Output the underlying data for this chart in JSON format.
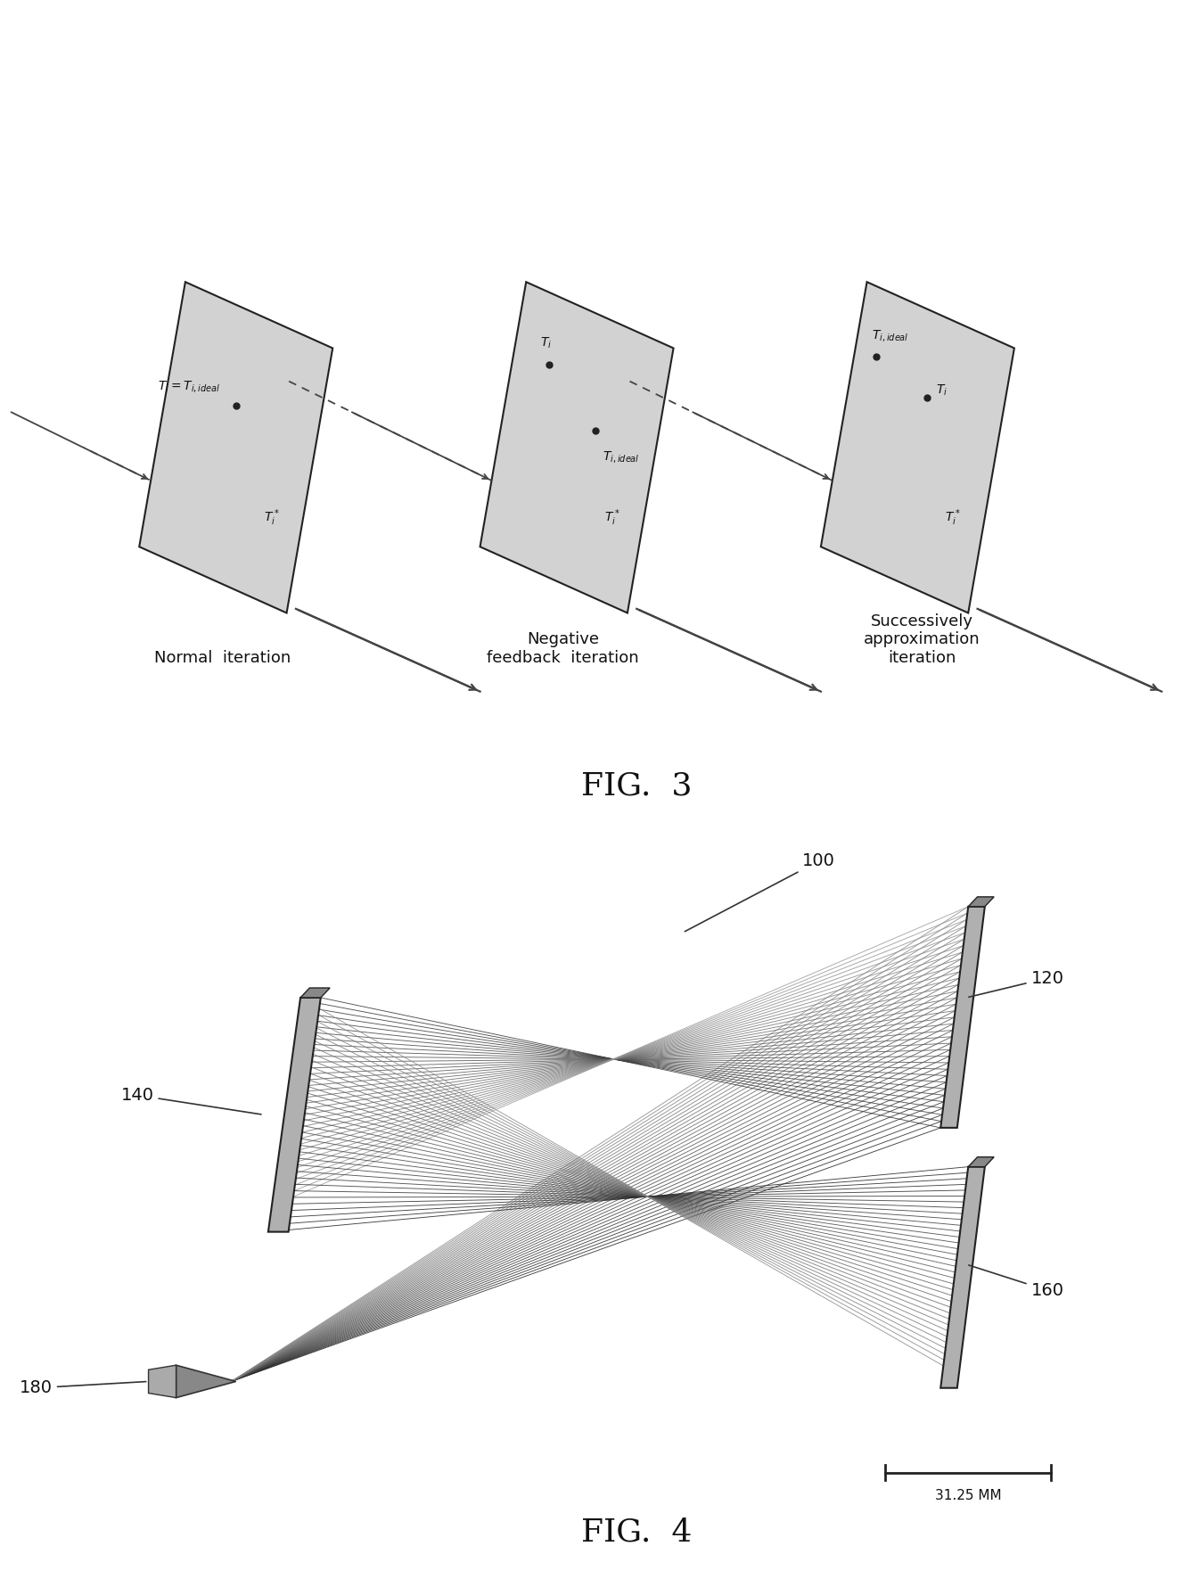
{
  "fig3_title": "FIG.  3",
  "fig4_title": "FIG.  4",
  "panel1_label": "Normal  iteration",
  "panel2_label": "Negative\nfeedback  iteration",
  "panel3_label": "Successively\napproximation\niteration",
  "label_100": "100",
  "label_120": "120",
  "label_140": "140",
  "label_160": "160",
  "label_180": "180",
  "scale_label": "31.25 MM",
  "bg_color": "#ffffff",
  "plane_fill": "#d2d2d2",
  "plane_edge": "#222222",
  "ray_dark": "#444444",
  "ray_mid": "#777777",
  "ray_light": "#aaaaaa",
  "text_color": "#111111",
  "num_rays": 35,
  "num_rays2": 30
}
